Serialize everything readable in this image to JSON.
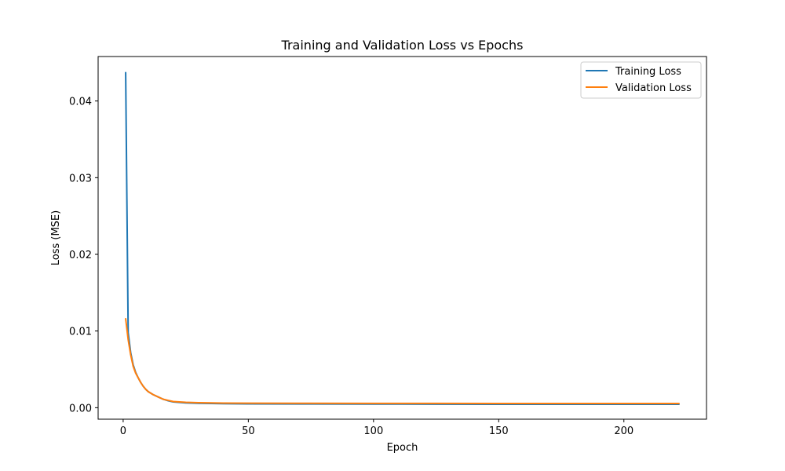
{
  "chart_data": {
    "type": "line",
    "title": "Training and Validation Loss vs Epochs",
    "xlabel": "Epoch",
    "ylabel": "Loss (MSE)",
    "xlim": [
      -10,
      233
    ],
    "ylim": [
      -0.0015,
      0.0458
    ],
    "xticks": [
      0,
      50,
      100,
      150,
      200
    ],
    "xtick_labels": [
      "0",
      "50",
      "100",
      "150",
      "200"
    ],
    "yticks": [
      0.0,
      0.01,
      0.02,
      0.03,
      0.04
    ],
    "ytick_labels": [
      "0.00",
      "0.01",
      "0.02",
      "0.03",
      "0.04"
    ],
    "grid": false,
    "legend_position": "top-right",
    "series": [
      {
        "name": "Training Loss",
        "color": "#1f77b4",
        "x": [
          1,
          2,
          3,
          4,
          5,
          6,
          7,
          8,
          9,
          10,
          12,
          14,
          16,
          18,
          20,
          25,
          30,
          40,
          50,
          75,
          100,
          125,
          150,
          175,
          200,
          222
        ],
        "y": [
          0.0437,
          0.0098,
          0.0072,
          0.0056,
          0.0046,
          0.0039,
          0.0033,
          0.0028,
          0.0024,
          0.0021,
          0.0017,
          0.0014,
          0.0011,
          0.0009,
          0.00075,
          0.00062,
          0.00057,
          0.00052,
          0.0005,
          0.00048,
          0.00047,
          0.00046,
          0.00045,
          0.00045,
          0.00044,
          0.00044
        ]
      },
      {
        "name": "Validation Loss",
        "color": "#ff7f0e",
        "x": [
          1,
          2,
          3,
          4,
          5,
          6,
          7,
          8,
          9,
          10,
          12,
          14,
          16,
          18,
          20,
          25,
          30,
          40,
          50,
          75,
          100,
          125,
          150,
          175,
          200,
          222
        ],
        "y": [
          0.0116,
          0.0089,
          0.0069,
          0.0054,
          0.0045,
          0.0039,
          0.0033,
          0.0028,
          0.0024,
          0.0021,
          0.0017,
          0.0014,
          0.0011,
          0.00095,
          0.0008,
          0.0007,
          0.00065,
          0.0006,
          0.00058,
          0.00057,
          0.00056,
          0.00056,
          0.00055,
          0.00055,
          0.00055,
          0.00055
        ]
      }
    ]
  }
}
